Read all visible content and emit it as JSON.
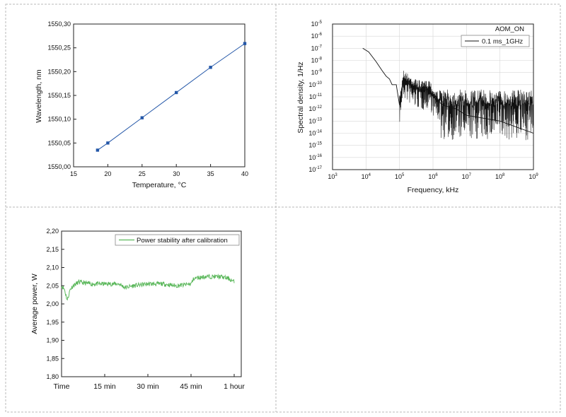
{
  "chart_data": [
    {
      "type": "line",
      "title": "",
      "xlabel": "Temperature, °C",
      "ylabel": "Wavelength, nm",
      "xlim": [
        15,
        40
      ],
      "ylim": [
        1550.0,
        1550.3
      ],
      "x_ticks": [
        "15",
        "20",
        "25",
        "30",
        "35",
        "40"
      ],
      "y_ticks": [
        "1550,00",
        "1550,05",
        "1550,10",
        "1550,15",
        "1550,20",
        "1550,25",
        "1550,30"
      ],
      "grid": false,
      "series": [
        {
          "x": [
            18.5,
            20,
            25,
            30,
            35,
            40
          ],
          "values": [
            1550.035,
            1550.05,
            1550.103,
            1550.156,
            1550.209,
            1550.259
          ]
        }
      ],
      "color": "#2457a8"
    },
    {
      "type": "line",
      "title": "AOM_ON",
      "xlabel": "Frequency, kHz",
      "ylabel": "Spectral density, 1/Hz",
      "xlim": [
        1000,
        1000000000
      ],
      "ylim": [
        1e-17,
        1e-05
      ],
      "xscale": "log",
      "yscale": "log",
      "x_tick_exponents": [
        3,
        4,
        5,
        6,
        7,
        8,
        9
      ],
      "y_tick_exponents": [
        -5,
        -6,
        -7,
        -8,
        -9,
        -10,
        -11,
        -12,
        -13,
        -14,
        -15,
        -16,
        -17
      ],
      "grid": true,
      "legend_position": "top-right",
      "series": [
        {
          "name": "0.1 ms_1GHz",
          "x": [
            8000,
            12000,
            20000,
            30000,
            40000,
            50000,
            60000,
            80000,
            100000,
            130000,
            200000,
            300000,
            500000,
            800000,
            1000000,
            2000000,
            5000000,
            10000000,
            100000000,
            1000000000
          ],
          "values": [
            1e-07,
            5e-08,
            8e-09,
            1.5e-09,
            5e-10,
            3e-10,
            1e-10,
            1e-10,
            2e-12,
            3e-10,
            1e-10,
            5e-11,
            3e-11,
            5e-11,
            1e-11,
            2e-12,
            1e-12,
            3e-13,
            1e-13,
            1e-14
          ]
        }
      ],
      "color": "#111111"
    },
    {
      "type": "line",
      "title": "",
      "xlabel": "",
      "ylabel": "Average power, W",
      "x_ticks": [
        "Time",
        "15 min",
        "30 min",
        "45 min",
        "1 hour"
      ],
      "xlim": [
        0,
        60
      ],
      "ylim": [
        1.8,
        2.2
      ],
      "y_ticks": [
        "1,80",
        "1,85",
        "1,90",
        "1,95",
        "2,00",
        "2,05",
        "2,10",
        "2,15",
        "2,20"
      ],
      "grid": false,
      "legend_position": "top-right",
      "series": [
        {
          "name": "Power stability after calibration",
          "x": [
            0,
            1,
            2,
            3,
            4,
            6,
            10,
            15,
            20,
            22,
            25,
            30,
            35,
            40,
            45,
            46,
            50,
            55,
            58,
            60
          ],
          "values": [
            2.05,
            2.04,
            2.01,
            2.04,
            2.05,
            2.06,
            2.055,
            2.055,
            2.055,
            2.045,
            2.05,
            2.055,
            2.055,
            2.05,
            2.055,
            2.07,
            2.075,
            2.075,
            2.07,
            2.06
          ]
        }
      ],
      "color": "#5cb85c"
    }
  ]
}
